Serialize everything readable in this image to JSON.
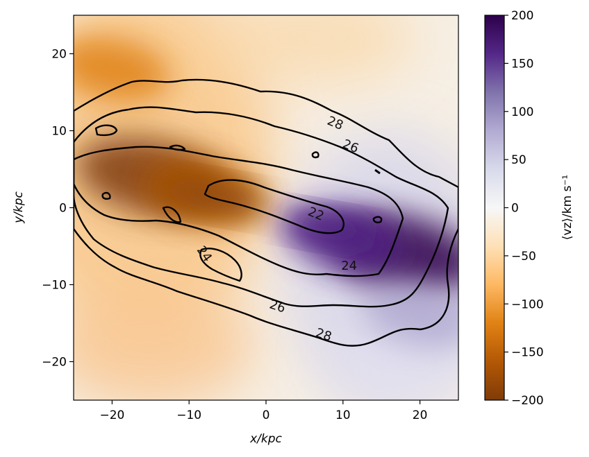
{
  "chart_data": {
    "type": "heatmap",
    "title": "",
    "xlabel": "x/kpc",
    "ylabel": "y/kpc",
    "xlim": [
      -25,
      25
    ],
    "ylim": [
      -25,
      25
    ],
    "x_ticks": [
      -20,
      -10,
      0,
      10,
      20
    ],
    "y_ticks": [
      -20,
      -10,
      0,
      10,
      20
    ],
    "x_tick_labels": [
      "−20",
      "−10",
      "0",
      "10",
      "20"
    ],
    "y_tick_labels": [
      "−20",
      "−10",
      "0",
      "10",
      "20"
    ],
    "colorbar": {
      "label": "⟨vz⟩/km s⁻¹",
      "range": [
        -200,
        200
      ],
      "ticks": [
        -200,
        -150,
        -100,
        -50,
        0,
        50,
        100,
        150,
        200
      ],
      "tick_labels": [
        "−200",
        "−150",
        "−100",
        "−50",
        "0",
        "50",
        "100",
        "150",
        "200"
      ],
      "colormap": "PuOr",
      "colors": [
        "#7f3b08",
        "#b35806",
        "#e08214",
        "#fdb863",
        "#fee0b6",
        "#f7f7f7",
        "#d8daeb",
        "#b2abd2",
        "#8073ac",
        "#542788",
        "#2d004b"
      ]
    },
    "velocity_field": {
      "description_pattern": "negative (orange) on left side, positive (purple) on right side",
      "lobes": [
        {
          "x": -15,
          "y": 4,
          "peak_value": -185
        },
        {
          "x": -8,
          "y": 2,
          "peak_value": -150
        },
        {
          "x": -20,
          "y": 18,
          "peak_value": -120
        },
        {
          "x": 18,
          "y": -6,
          "peak_value": 180
        },
        {
          "x": 10,
          "y": -4,
          "peak_value": 140
        },
        {
          "x": 20,
          "y": -14,
          "peak_value": 60
        }
      ]
    },
    "contours": [
      {
        "level": "22",
        "label_position": [
          6.5,
          -0.8
        ]
      },
      {
        "level": "24",
        "label_position": [
          10.8,
          -7.5
        ]
      },
      {
        "level": "24",
        "label_position": [
          -8,
          -6
        ]
      },
      {
        "level": "26",
        "label_position": [
          1.5,
          -12.8
        ]
      },
      {
        "level": "26",
        "label_position": [
          11,
          8
        ]
      },
      {
        "level": "28",
        "label_position": [
          7.5,
          -16.5
        ]
      },
      {
        "level": "28",
        "label_position": [
          9,
          11
        ]
      }
    ],
    "grid": false
  }
}
